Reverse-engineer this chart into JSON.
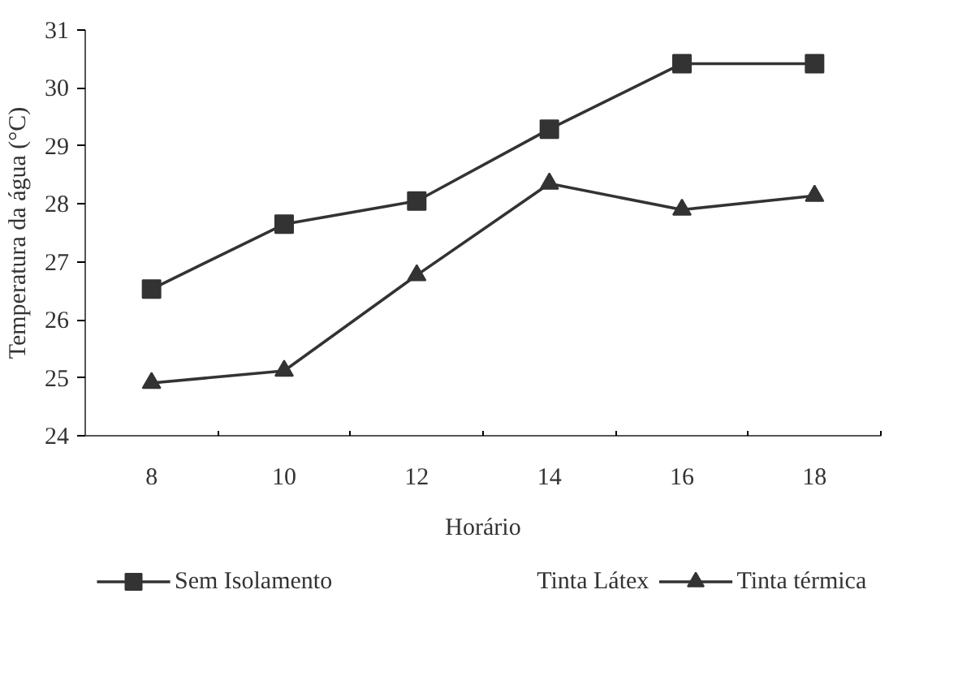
{
  "chart_data": {
    "type": "line",
    "xlabel": "Horário",
    "ylabel": "Temperatura da água (°C)",
    "categories": [
      "8",
      "10",
      "12",
      "14",
      "16",
      "18"
    ],
    "annotations": [
      "Tinta Látex"
    ],
    "ylim": [
      24,
      31
    ],
    "yticks": [
      24,
      25,
      26,
      27,
      28,
      29,
      30,
      31
    ],
    "grid": false,
    "legend": "bottom",
    "series": [
      {
        "name": "Sem Isolamento",
        "color": "#333333",
        "marker": "square",
        "values": [
          26.53,
          27.65,
          28.05,
          29.29,
          30.42,
          30.42
        ]
      },
      {
        "name": "Tinta térmica",
        "color": "#333333",
        "marker": "triangle",
        "values": [
          24.91,
          25.12,
          26.77,
          28.35,
          27.9,
          28.14
        ]
      }
    ]
  }
}
